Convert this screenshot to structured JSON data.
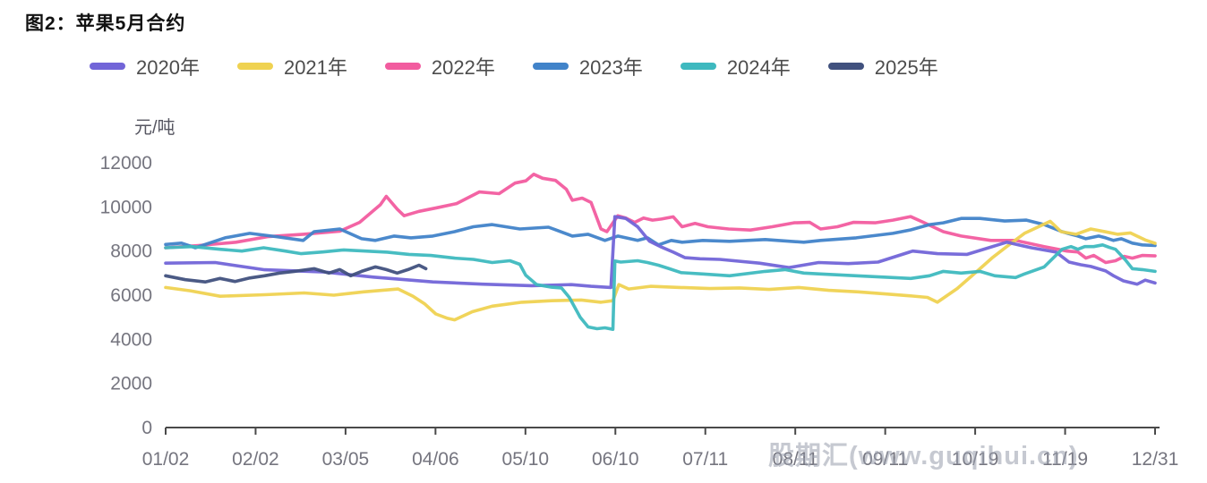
{
  "title": "图2：苹果5月合约",
  "y_unit": "元/吨",
  "watermark": "股期汇(www.guqihui.cn)",
  "axis_color": "#4a4a4a",
  "tick_label_color": "#75757f",
  "chart_data": {
    "type": "line",
    "title": "图2：苹果5月合约",
    "ylabel": "元/吨",
    "ylim": [
      0,
      12000
    ],
    "y_ticks": [
      0,
      2000,
      4000,
      6000,
      8000,
      10000,
      12000
    ],
    "x_tick_labels": [
      "01/02",
      "02/02",
      "03/05",
      "04/06",
      "05/10",
      "06/10",
      "07/11",
      "08/11",
      "09/11",
      "10/19",
      "11/19",
      "12/31"
    ],
    "grid": false,
    "legend_position": "top",
    "series": [
      {
        "name": "2020年",
        "color": "#7265D8",
        "points": [
          [
            0,
            7450
          ],
          [
            0.05,
            7480
          ],
          [
            0.1,
            7150
          ],
          [
            0.16,
            7050
          ],
          [
            0.21,
            6820
          ],
          [
            0.27,
            6600
          ],
          [
            0.32,
            6500
          ],
          [
            0.37,
            6430
          ],
          [
            0.41,
            6480
          ],
          [
            0.43,
            6400
          ],
          [
            0.45,
            6350
          ],
          [
            0.454,
            9560
          ],
          [
            0.465,
            9480
          ],
          [
            0.477,
            9100
          ],
          [
            0.489,
            8450
          ],
          [
            0.5,
            8200
          ],
          [
            0.513,
            7950
          ],
          [
            0.525,
            7700
          ],
          [
            0.54,
            7650
          ],
          [
            0.56,
            7620
          ],
          [
            0.6,
            7450
          ],
          [
            0.63,
            7250
          ],
          [
            0.66,
            7480
          ],
          [
            0.69,
            7430
          ],
          [
            0.72,
            7500
          ],
          [
            0.755,
            8000
          ],
          [
            0.78,
            7880
          ],
          [
            0.81,
            7850
          ],
          [
            0.85,
            8400
          ],
          [
            0.875,
            8150
          ],
          [
            0.9,
            7950
          ],
          [
            0.913,
            7500
          ],
          [
            0.925,
            7380
          ],
          [
            0.935,
            7300
          ],
          [
            0.95,
            7100
          ],
          [
            0.958,
            6880
          ],
          [
            0.968,
            6650
          ],
          [
            0.982,
            6500
          ],
          [
            0.99,
            6680
          ],
          [
            1,
            6550
          ]
        ]
      },
      {
        "name": "2021年",
        "color": "#EFD251",
        "points": [
          [
            0,
            6350
          ],
          [
            0.025,
            6200
          ],
          [
            0.055,
            5950
          ],
          [
            0.1,
            6020
          ],
          [
            0.14,
            6100
          ],
          [
            0.17,
            6000
          ],
          [
            0.2,
            6150
          ],
          [
            0.235,
            6280
          ],
          [
            0.25,
            5950
          ],
          [
            0.262,
            5600
          ],
          [
            0.273,
            5150
          ],
          [
            0.285,
            4950
          ],
          [
            0.292,
            4880
          ],
          [
            0.31,
            5250
          ],
          [
            0.33,
            5500
          ],
          [
            0.36,
            5680
          ],
          [
            0.39,
            5750
          ],
          [
            0.42,
            5780
          ],
          [
            0.44,
            5680
          ],
          [
            0.452,
            5750
          ],
          [
            0.458,
            6480
          ],
          [
            0.468,
            6280
          ],
          [
            0.49,
            6400
          ],
          [
            0.52,
            6350
          ],
          [
            0.55,
            6300
          ],
          [
            0.58,
            6330
          ],
          [
            0.61,
            6260
          ],
          [
            0.64,
            6350
          ],
          [
            0.67,
            6220
          ],
          [
            0.7,
            6150
          ],
          [
            0.73,
            6050
          ],
          [
            0.755,
            5960
          ],
          [
            0.77,
            5900
          ],
          [
            0.78,
            5680
          ],
          [
            0.8,
            6300
          ],
          [
            0.82,
            7080
          ],
          [
            0.835,
            7680
          ],
          [
            0.85,
            8200
          ],
          [
            0.868,
            8800
          ],
          [
            0.894,
            9350
          ],
          [
            0.905,
            8880
          ],
          [
            0.92,
            8760
          ],
          [
            0.935,
            9000
          ],
          [
            0.95,
            8870
          ],
          [
            0.962,
            8760
          ],
          [
            0.975,
            8820
          ],
          [
            0.99,
            8500
          ],
          [
            1,
            8350
          ]
        ]
      },
      {
        "name": "2022年",
        "color": "#F25C9F",
        "points": [
          [
            0,
            8150
          ],
          [
            0.033,
            8250
          ],
          [
            0.071,
            8400
          ],
          [
            0.103,
            8650
          ],
          [
            0.139,
            8760
          ],
          [
            0.176,
            8900
          ],
          [
            0.196,
            9300
          ],
          [
            0.217,
            10100
          ],
          [
            0.223,
            10480
          ],
          [
            0.234,
            9900
          ],
          [
            0.241,
            9600
          ],
          [
            0.256,
            9800
          ],
          [
            0.274,
            9960
          ],
          [
            0.294,
            10150
          ],
          [
            0.317,
            10680
          ],
          [
            0.337,
            10600
          ],
          [
            0.353,
            11080
          ],
          [
            0.364,
            11180
          ],
          [
            0.372,
            11480
          ],
          [
            0.381,
            11300
          ],
          [
            0.394,
            11200
          ],
          [
            0.405,
            10800
          ],
          [
            0.411,
            10300
          ],
          [
            0.421,
            10400
          ],
          [
            0.43,
            10200
          ],
          [
            0.44,
            9000
          ],
          [
            0.446,
            8880
          ],
          [
            0.457,
            9600
          ],
          [
            0.465,
            9500
          ],
          [
            0.474,
            9300
          ],
          [
            0.483,
            9500
          ],
          [
            0.492,
            9400
          ],
          [
            0.501,
            9450
          ],
          [
            0.513,
            9550
          ],
          [
            0.522,
            9100
          ],
          [
            0.535,
            9250
          ],
          [
            0.548,
            9100
          ],
          [
            0.569,
            9000
          ],
          [
            0.591,
            8950
          ],
          [
            0.613,
            9100
          ],
          [
            0.635,
            9280
          ],
          [
            0.651,
            9300
          ],
          [
            0.662,
            9000
          ],
          [
            0.679,
            9100
          ],
          [
            0.695,
            9300
          ],
          [
            0.717,
            9280
          ],
          [
            0.735,
            9400
          ],
          [
            0.753,
            9560
          ],
          [
            0.766,
            9300
          ],
          [
            0.786,
            8880
          ],
          [
            0.804,
            8680
          ],
          [
            0.834,
            8480
          ],
          [
            0.859,
            8480
          ],
          [
            0.888,
            8200
          ],
          [
            0.911,
            8000
          ],
          [
            0.922,
            7960
          ],
          [
            0.93,
            7680
          ],
          [
            0.938,
            7800
          ],
          [
            0.95,
            7480
          ],
          [
            0.96,
            7560
          ],
          [
            0.969,
            7760
          ],
          [
            0.977,
            7680
          ],
          [
            0.987,
            7800
          ],
          [
            1,
            7780
          ]
        ]
      },
      {
        "name": "2023年",
        "color": "#4183C9",
        "points": [
          [
            0,
            8300
          ],
          [
            0.016,
            8360
          ],
          [
            0.03,
            8150
          ],
          [
            0.06,
            8600
          ],
          [
            0.085,
            8800
          ],
          [
            0.112,
            8650
          ],
          [
            0.139,
            8480
          ],
          [
            0.15,
            8880
          ],
          [
            0.176,
            9000
          ],
          [
            0.198,
            8560
          ],
          [
            0.212,
            8480
          ],
          [
            0.231,
            8680
          ],
          [
            0.248,
            8600
          ],
          [
            0.27,
            8680
          ],
          [
            0.292,
            8880
          ],
          [
            0.311,
            9100
          ],
          [
            0.33,
            9200
          ],
          [
            0.358,
            9000
          ],
          [
            0.387,
            9080
          ],
          [
            0.411,
            8680
          ],
          [
            0.427,
            8760
          ],
          [
            0.444,
            8480
          ],
          [
            0.457,
            8680
          ],
          [
            0.477,
            8480
          ],
          [
            0.487,
            8600
          ],
          [
            0.498,
            8280
          ],
          [
            0.511,
            8480
          ],
          [
            0.522,
            8400
          ],
          [
            0.543,
            8480
          ],
          [
            0.57,
            8440
          ],
          [
            0.606,
            8520
          ],
          [
            0.645,
            8400
          ],
          [
            0.662,
            8480
          ],
          [
            0.698,
            8600
          ],
          [
            0.735,
            8800
          ],
          [
            0.753,
            8960
          ],
          [
            0.772,
            9200
          ],
          [
            0.786,
            9280
          ],
          [
            0.804,
            9480
          ],
          [
            0.823,
            9480
          ],
          [
            0.848,
            9360
          ],
          [
            0.87,
            9400
          ],
          [
            0.888,
            9200
          ],
          [
            0.906,
            8880
          ],
          [
            0.915,
            8760
          ],
          [
            0.922,
            8680
          ],
          [
            0.93,
            8560
          ],
          [
            0.943,
            8680
          ],
          [
            0.95,
            8600
          ],
          [
            0.958,
            8480
          ],
          [
            0.966,
            8560
          ],
          [
            0.977,
            8360
          ],
          [
            0.987,
            8280
          ],
          [
            1,
            8250
          ]
        ]
      },
      {
        "name": "2024年",
        "color": "#3EB9BF",
        "points": [
          [
            0,
            8150
          ],
          [
            0.027,
            8200
          ],
          [
            0.055,
            8080
          ],
          [
            0.077,
            8000
          ],
          [
            0.099,
            8150
          ],
          [
            0.121,
            8000
          ],
          [
            0.137,
            7880
          ],
          [
            0.159,
            7960
          ],
          [
            0.18,
            8050
          ],
          [
            0.202,
            8000
          ],
          [
            0.224,
            7950
          ],
          [
            0.246,
            7850
          ],
          [
            0.268,
            7800
          ],
          [
            0.292,
            7680
          ],
          [
            0.311,
            7620
          ],
          [
            0.33,
            7480
          ],
          [
            0.348,
            7560
          ],
          [
            0.358,
            7400
          ],
          [
            0.364,
            6900
          ],
          [
            0.375,
            6480
          ],
          [
            0.39,
            6360
          ],
          [
            0.4,
            6330
          ],
          [
            0.408,
            5900
          ],
          [
            0.419,
            5000
          ],
          [
            0.427,
            4560
          ],
          [
            0.436,
            4480
          ],
          [
            0.444,
            4520
          ],
          [
            0.452,
            4450
          ],
          [
            0.454,
            7550
          ],
          [
            0.46,
            7500
          ],
          [
            0.477,
            7560
          ],
          [
            0.487,
            7480
          ],
          [
            0.498,
            7360
          ],
          [
            0.509,
            7200
          ],
          [
            0.521,
            7020
          ],
          [
            0.543,
            6960
          ],
          [
            0.57,
            6880
          ],
          [
            0.606,
            7080
          ],
          [
            0.626,
            7160
          ],
          [
            0.645,
            7000
          ],
          [
            0.662,
            6960
          ],
          [
            0.698,
            6880
          ],
          [
            0.735,
            6800
          ],
          [
            0.753,
            6760
          ],
          [
            0.772,
            6880
          ],
          [
            0.786,
            7080
          ],
          [
            0.804,
            7000
          ],
          [
            0.823,
            7080
          ],
          [
            0.838,
            6880
          ],
          [
            0.859,
            6800
          ],
          [
            0.868,
            6960
          ],
          [
            0.888,
            7280
          ],
          [
            0.906,
            8080
          ],
          [
            0.915,
            8200
          ],
          [
            0.922,
            8080
          ],
          [
            0.929,
            8200
          ],
          [
            0.938,
            8200
          ],
          [
            0.947,
            8280
          ],
          [
            0.954,
            8160
          ],
          [
            0.96,
            8080
          ],
          [
            0.97,
            7600
          ],
          [
            0.977,
            7200
          ],
          [
            0.987,
            7160
          ],
          [
            1,
            7080
          ]
        ]
      },
      {
        "name": "2025年",
        "color": "#41517E",
        "points": [
          [
            0,
            6880
          ],
          [
            0.02,
            6700
          ],
          [
            0.04,
            6600
          ],
          [
            0.055,
            6760
          ],
          [
            0.07,
            6620
          ],
          [
            0.085,
            6780
          ],
          [
            0.1,
            6880
          ],
          [
            0.115,
            7000
          ],
          [
            0.13,
            7080
          ],
          [
            0.15,
            7200
          ],
          [
            0.165,
            7000
          ],
          [
            0.176,
            7160
          ],
          [
            0.187,
            6880
          ],
          [
            0.198,
            7080
          ],
          [
            0.212,
            7280
          ],
          [
            0.223,
            7160
          ],
          [
            0.234,
            7000
          ],
          [
            0.245,
            7160
          ],
          [
            0.256,
            7360
          ],
          [
            0.263,
            7200
          ]
        ]
      }
    ],
    "draw_order": [
      2,
      3,
      1,
      0,
      4,
      5
    ]
  }
}
